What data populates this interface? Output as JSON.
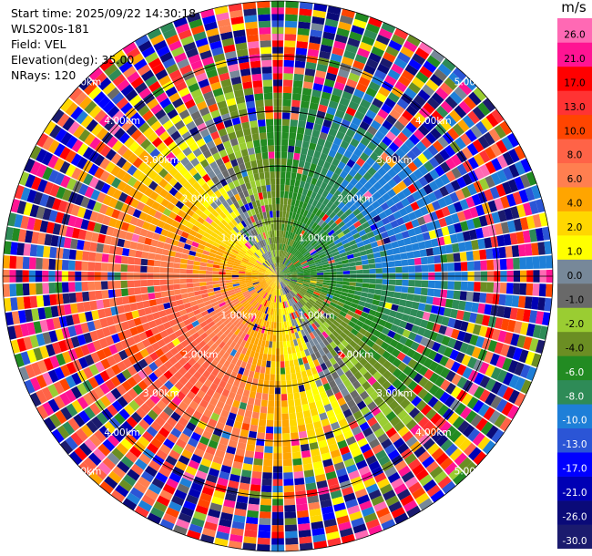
{
  "header": {
    "start_time": "Start time: 2025/09/22 14:30:18",
    "instrument": "WLS200s-181",
    "field": "Field: VEL",
    "elevation": "Elevation(deg): 35.00",
    "nrays": "NRays: 120"
  },
  "chart_data": {
    "type": "heatmap",
    "projection": "polar-ppi",
    "field": "VEL",
    "elevation_deg": 35.0,
    "n_rays": 120,
    "max_range_km": 5.0,
    "range_rings": [
      {
        "value": 1.0,
        "label": "1.00km"
      },
      {
        "value": 2.0,
        "label": "2.00km"
      },
      {
        "value": 3.0,
        "label": "3.00km"
      },
      {
        "value": 4.0,
        "label": "4.00km"
      },
      {
        "value": 5.0,
        "label": "5.00km"
      }
    ],
    "colorbar": {
      "unit": "m/s",
      "levels": [
        -30.0,
        -26.0,
        -21.0,
        -17.0,
        -13.0,
        -10.0,
        -8.0,
        -6.0,
        -4.0,
        -2.0,
        -1.0,
        0.0,
        1.0,
        2.0,
        4.0,
        6.0,
        8.0,
        10.0,
        13.0,
        17.0,
        21.0,
        26.0
      ],
      "tick_labels": [
        "-30.0",
        "-26.0",
        "-21.0",
        "-17.0",
        "-13.0",
        "-10.0",
        "-8.0",
        "-6.0",
        "-4.0",
        "-2.0",
        "-1.0",
        "0.0",
        "1.0",
        "2.0",
        "4.0",
        "6.0",
        "8.0",
        "10.0",
        "13.0",
        "17.0",
        "21.0",
        "26.0"
      ],
      "colors": [
        "#1b1b6e",
        "#0a0a78",
        "#0000b4",
        "#0000ff",
        "#2b55d6",
        "#1e7fd8",
        "#2e8b57",
        "#228b22",
        "#6b8e23",
        "#9acd32",
        "#696969",
        "#778899",
        "#ffff00",
        "#ffd700",
        "#ffa500",
        "#ff7f50",
        "#ff6347",
        "#ff4500",
        "#ff3333",
        "#ff0000",
        "#ff1493",
        "#ff69b4"
      ]
    }
  }
}
